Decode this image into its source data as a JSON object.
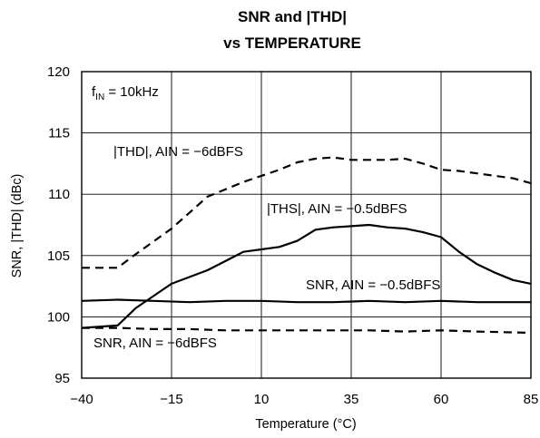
{
  "chart_data": {
    "type": "line",
    "title_line1": "SNR and |THD|",
    "title_line2": "vs TEMPERATURE",
    "xlabel": "Temperature (°C)",
    "ylabel": "SNR, |THD| (dBc)",
    "xlim": [
      -40,
      85
    ],
    "ylim": [
      95,
      120
    ],
    "xticks": [
      -40,
      -15,
      10,
      35,
      60,
      85
    ],
    "xtick_labels": [
      "−40",
      "−15",
      "10",
      "35",
      "60",
      "85"
    ],
    "yticks": [
      95,
      100,
      105,
      110,
      115,
      120
    ],
    "ytick_labels": [
      "95",
      "100",
      "105",
      "110",
      "115",
      "120"
    ],
    "grid": true,
    "legend": "none",
    "annotation_fin": {
      "main": "f",
      "sub": "IN",
      "rest": " = 10kHz"
    },
    "series": [
      {
        "name": "|THD|, AIN = −6dBFS",
        "style": "dashed",
        "x": [
          -40,
          -30,
          -25,
          -15,
          -5,
          5,
          10,
          15,
          20,
          25,
          30,
          35,
          40,
          45,
          50,
          55,
          60,
          65,
          70,
          75,
          80,
          85
        ],
        "y": [
          104.0,
          104.0,
          105.1,
          107.2,
          109.8,
          111.0,
          111.5,
          112.0,
          112.6,
          112.9,
          113.0,
          112.8,
          112.8,
          112.8,
          112.9,
          112.5,
          112.0,
          111.9,
          111.7,
          111.5,
          111.3,
          110.9
        ]
      },
      {
        "name": "|THS|, AIN = −0.5dBFS",
        "style": "solid",
        "x": [
          -40,
          -30,
          -25,
          -15,
          -5,
          5,
          10,
          15,
          20,
          25,
          30,
          35,
          40,
          45,
          50,
          55,
          60,
          65,
          70,
          75,
          80,
          85
        ],
        "y": [
          99.1,
          99.3,
          100.7,
          102.7,
          103.8,
          105.3,
          105.5,
          105.7,
          106.2,
          107.1,
          107.3,
          107.4,
          107.5,
          107.3,
          107.2,
          106.9,
          106.5,
          105.3,
          104.3,
          103.6,
          103.0,
          102.7
        ]
      },
      {
        "name": "SNR, AIN = −0.5dBFS",
        "style": "solid",
        "x": [
          -40,
          -30,
          -20,
          -10,
          0,
          10,
          20,
          30,
          40,
          50,
          60,
          70,
          85
        ],
        "y": [
          101.3,
          101.4,
          101.3,
          101.2,
          101.3,
          101.3,
          101.2,
          101.2,
          101.3,
          101.2,
          101.3,
          101.2,
          101.2
        ]
      },
      {
        "name": "SNR, AIN = −6dBFS",
        "style": "dashed",
        "x": [
          -40,
          -30,
          -20,
          -10,
          0,
          10,
          20,
          30,
          40,
          50,
          60,
          70,
          85
        ],
        "y": [
          99.1,
          99.1,
          99.0,
          99.0,
          98.9,
          98.9,
          98.9,
          98.9,
          98.9,
          98.8,
          98.9,
          98.8,
          98.7
        ]
      }
    ]
  }
}
